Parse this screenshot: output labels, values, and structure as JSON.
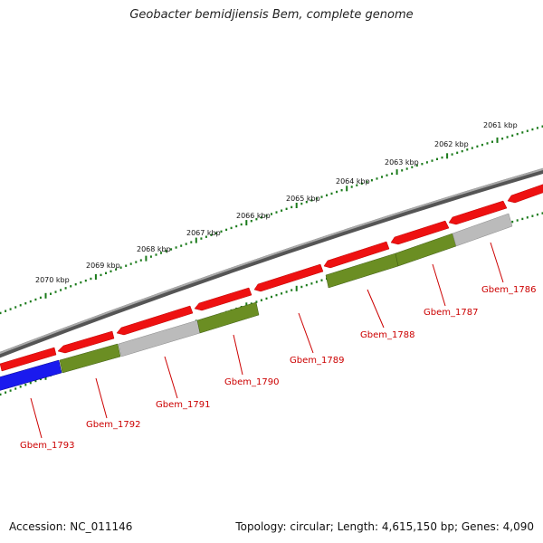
{
  "title": "Geobacter bemidjiensis Bem, complete genome",
  "footer": {
    "accession": "Accession: NC_011146",
    "meta": "Topology: circular; Length: 4,615,150 bp; Genes: 4,090"
  },
  "colors": {
    "backbone": "#777777",
    "tick": "#1a7a1a",
    "gene_red": "#ee1111",
    "gene_olive": "#6b8e23",
    "gene_grey": "#bbbbbb",
    "gene_blue": "#1a1aee",
    "label": "#cc0000"
  },
  "scale_labels": [
    "2061 kbp",
    "2062 kbp",
    "2063 kbp",
    "2064 kbp",
    "2065 kbp",
    "2066 kbp",
    "2067 kbp",
    "2068 kbp",
    "2069 kbp",
    "2070 kbp"
  ],
  "gene_labels": [
    "Gbem_1786",
    "Gbem_1787",
    "Gbem_1788",
    "Gbem_1789",
    "Gbem_1790",
    "Gbem_1791",
    "Gbem_1792",
    "Gbem_1793"
  ]
}
